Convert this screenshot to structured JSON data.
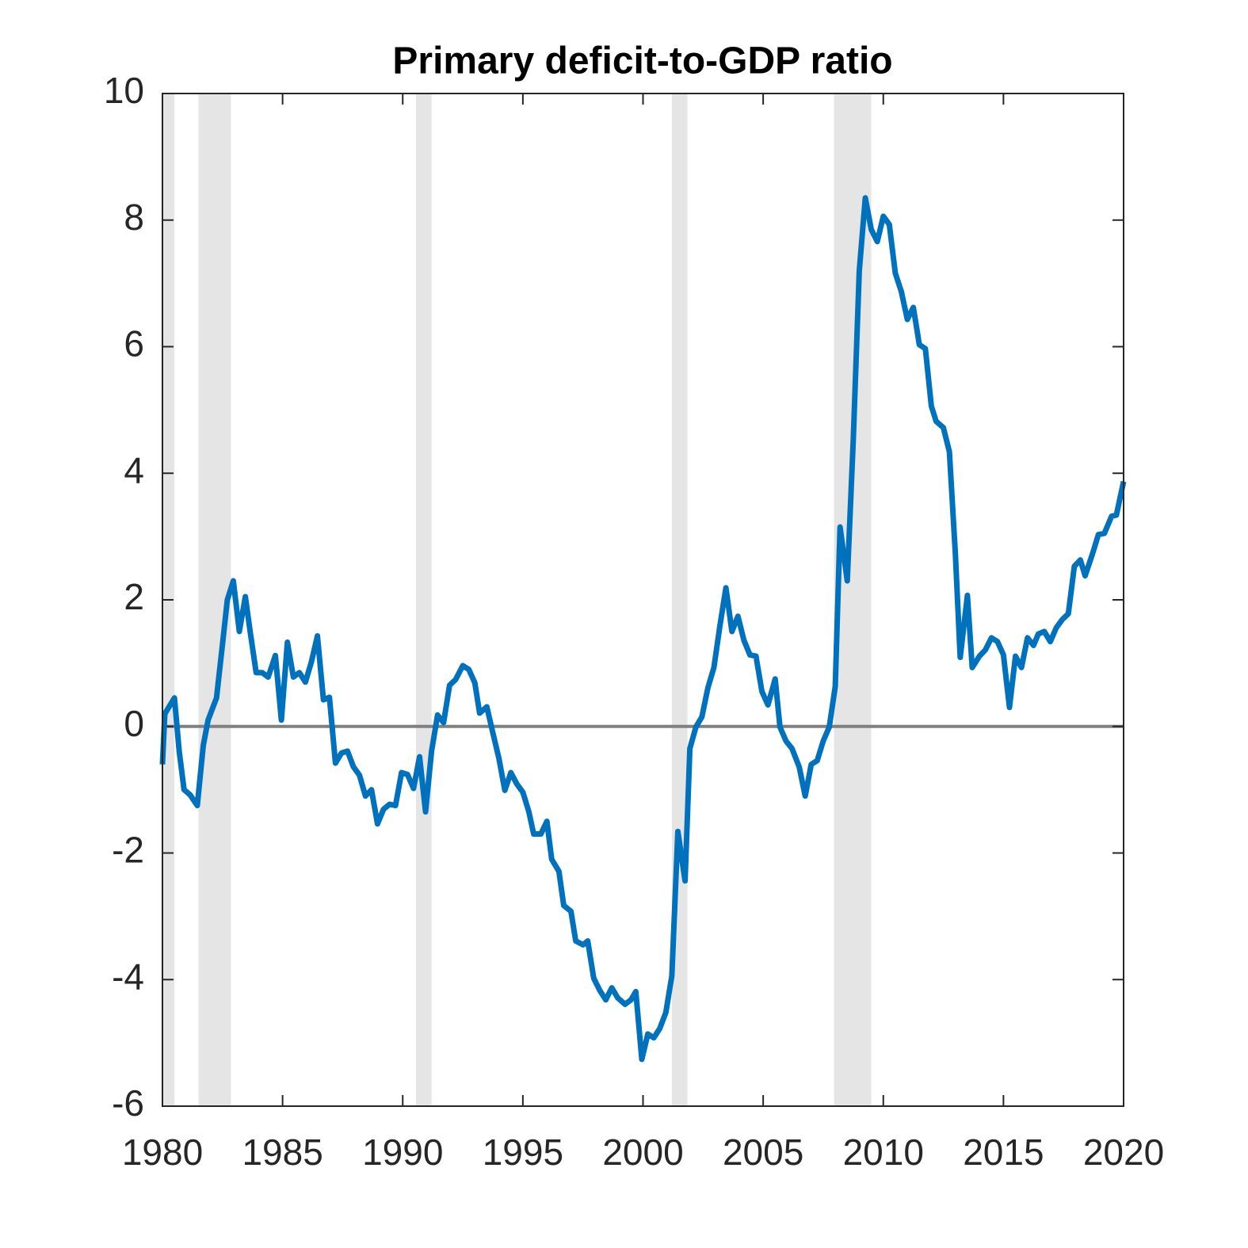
{
  "chart_data": {
    "type": "line",
    "title": "Primary deficit-to-GDP ratio",
    "x": [
      1980.0,
      1980.1,
      1980.5,
      1980.7,
      1980.9,
      1981.15,
      1981.45,
      1981.7,
      1981.9,
      1982.25,
      1982.5,
      1982.7,
      1982.95,
      1983.2,
      1983.45,
      1983.65,
      1983.9,
      1984.15,
      1984.4,
      1984.7,
      1984.95,
      1985.2,
      1985.45,
      1985.7,
      1985.95,
      1986.2,
      1986.45,
      1986.7,
      1986.95,
      1987.2,
      1987.45,
      1987.7,
      1987.95,
      1988.2,
      1988.45,
      1988.7,
      1988.95,
      1989.2,
      1989.45,
      1989.7,
      1989.95,
      1990.2,
      1990.45,
      1990.7,
      1990.95,
      1991.2,
      1991.45,
      1991.7,
      1991.95,
      1992.2,
      1992.5,
      1992.75,
      1993.0,
      1993.2,
      1993.5,
      1993.75,
      1994.0,
      1994.25,
      1994.5,
      1994.75,
      1995.0,
      1995.25,
      1995.45,
      1995.75,
      1996.0,
      1996.2,
      1996.5,
      1996.7,
      1997.0,
      1997.2,
      1997.5,
      1997.7,
      1997.95,
      1998.2,
      1998.45,
      1998.7,
      1998.95,
      1999.25,
      1999.5,
      1999.7,
      1999.95,
      2000.2,
      2000.45,
      2000.7,
      2000.95,
      2001.2,
      2001.45,
      2001.75,
      2001.95,
      2002.2,
      2002.45,
      2002.7,
      2002.95,
      2003.2,
      2003.45,
      2003.7,
      2003.95,
      2004.2,
      2004.45,
      2004.7,
      2004.95,
      2005.2,
      2005.5,
      2005.7,
      2005.95,
      2006.2,
      2006.5,
      2006.75,
      2007.0,
      2007.25,
      2007.5,
      2007.75,
      2008.0,
      2008.2,
      2008.5,
      2008.75,
      2009.0,
      2009.25,
      2009.5,
      2009.75,
      2010.0,
      2010.25,
      2010.5,
      2010.75,
      2011.0,
      2011.25,
      2011.5,
      2011.75,
      2012.0,
      2012.2,
      2012.5,
      2012.75,
      2013.0,
      2013.2,
      2013.5,
      2013.7,
      2014.0,
      2014.25,
      2014.5,
      2014.75,
      2015.0,
      2015.25,
      2015.5,
      2015.75,
      2016.0,
      2016.25,
      2016.45,
      2016.7,
      2016.95,
      2017.2,
      2017.45,
      2017.7,
      2017.95,
      2018.2,
      2018.4,
      2018.7,
      2018.95,
      2019.2,
      2019.5,
      2019.7,
      2020.0
    ],
    "series": [
      {
        "color": "#0072bd",
        "values": [
          -0.6,
          0.2,
          0.45,
          -0.4,
          -1.0,
          -1.08,
          -1.25,
          -0.3,
          0.1,
          0.45,
          1.3,
          2.0,
          2.3,
          1.5,
          2.05,
          1.5,
          0.85,
          0.85,
          0.78,
          1.12,
          0.1,
          1.33,
          0.78,
          0.85,
          0.7,
          1.02,
          1.43,
          0.42,
          0.46,
          -0.58,
          -0.42,
          -0.39,
          -0.64,
          -0.77,
          -1.1,
          -1.0,
          -1.54,
          -1.31,
          -1.23,
          -1.25,
          -0.73,
          -0.76,
          -0.98,
          -0.48,
          -1.35,
          -0.39,
          0.18,
          0.06,
          0.65,
          0.74,
          0.96,
          0.9,
          0.69,
          0.21,
          0.31,
          -0.1,
          -0.5,
          -1.01,
          -0.73,
          -0.91,
          -1.04,
          -1.35,
          -1.7,
          -1.7,
          -1.5,
          -2.1,
          -2.29,
          -2.83,
          -2.92,
          -3.39,
          -3.45,
          -3.39,
          -3.98,
          -4.17,
          -4.32,
          -4.13,
          -4.29,
          -4.39,
          -4.32,
          -4.19,
          -5.26,
          -4.86,
          -4.92,
          -4.77,
          -4.52,
          -3.94,
          -1.66,
          -2.44,
          -0.35,
          -0.01,
          0.15,
          0.61,
          0.93,
          1.59,
          2.19,
          1.5,
          1.74,
          1.36,
          1.13,
          1.11,
          0.55,
          0.34,
          0.75,
          -0.01,
          -0.23,
          -0.35,
          -0.64,
          -1.1,
          -0.6,
          -0.54,
          -0.23,
          -0.01,
          0.63,
          3.15,
          2.3,
          4.53,
          7.2,
          8.35,
          7.85,
          7.66,
          8.06,
          7.93,
          7.16,
          6.87,
          6.43,
          6.62,
          6.03,
          5.97,
          5.06,
          4.82,
          4.72,
          4.34,
          2.72,
          1.09,
          2.07,
          0.93,
          1.11,
          1.21,
          1.4,
          1.34,
          1.13,
          0.3,
          1.11,
          0.93,
          1.4,
          1.28,
          1.46,
          1.5,
          1.34,
          1.56,
          1.69,
          1.78,
          2.53,
          2.63,
          2.38,
          2.72,
          3.03,
          3.05,
          3.32,
          3.34,
          3.87
        ]
      }
    ],
    "recessions": [
      [
        1980.0,
        1980.5
      ],
      [
        1981.5,
        1982.85
      ],
      [
        1990.55,
        1991.2
      ],
      [
        2001.2,
        2001.85
      ],
      [
        2007.95,
        2009.5
      ]
    ],
    "recession_color": "#e5e5e5",
    "xlim": [
      1980,
      2020
    ],
    "xticks": [
      1980,
      1985,
      1990,
      1995,
      2000,
      2005,
      2010,
      2015,
      2020
    ],
    "ylim": [
      -6,
      10
    ],
    "yticks": [
      -6,
      -4,
      -2,
      0,
      2,
      4,
      6,
      8,
      10
    ],
    "zero_line": true,
    "grid": false
  }
}
